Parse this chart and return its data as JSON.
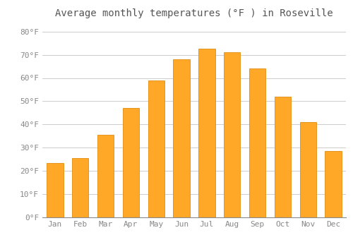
{
  "title": "Average monthly temperatures (°F ) in Roseville",
  "months": [
    "Jan",
    "Feb",
    "Mar",
    "Apr",
    "May",
    "Jun",
    "Jul",
    "Aug",
    "Sep",
    "Oct",
    "Nov",
    "Dec"
  ],
  "values": [
    23.5,
    25.5,
    35.5,
    47,
    59,
    68,
    72.5,
    71,
    64,
    52,
    41,
    28.5
  ],
  "bar_color": "#FFA726",
  "bar_edge_color": "#E69520",
  "background_color": "#FFFFFF",
  "grid_color": "#CCCCCC",
  "ylim": [
    0,
    84
  ],
  "yticks": [
    0,
    10,
    20,
    30,
    40,
    50,
    60,
    70,
    80
  ],
  "ylabel_suffix": "°F",
  "title_fontsize": 10,
  "tick_fontsize": 8,
  "font_family": "monospace"
}
